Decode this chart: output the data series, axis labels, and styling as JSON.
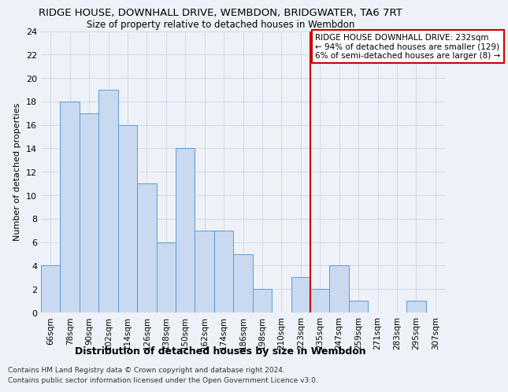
{
  "title": "RIDGE HOUSE, DOWNHALL DRIVE, WEMBDON, BRIDGWATER, TA6 7RT",
  "subtitle": "Size of property relative to detached houses in Wembdon",
  "xlabel_bottom": "Distribution of detached houses by size in Wembdon",
  "ylabel": "Number of detached properties",
  "footer1": "Contains HM Land Registry data © Crown copyright and database right 2024.",
  "footer2": "Contains public sector information licensed under the Open Government Licence v3.0.",
  "categories": [
    "66sqm",
    "78sqm",
    "90sqm",
    "102sqm",
    "114sqm",
    "126sqm",
    "138sqm",
    "150sqm",
    "162sqm",
    "174sqm",
    "186sqm",
    "198sqm",
    "210sqm",
    "223sqm",
    "235sqm",
    "247sqm",
    "259sqm",
    "271sqm",
    "283sqm",
    "295sqm",
    "307sqm"
  ],
  "values": [
    4,
    18,
    17,
    19,
    16,
    11,
    6,
    14,
    7,
    7,
    5,
    2,
    0,
    3,
    2,
    4,
    1,
    0,
    0,
    1,
    0
  ],
  "bar_color": "#c9d9f0",
  "bar_edge_color": "#5b9bd5",
  "grid_color": "#d0d8e8",
  "annotation_text_line1": "RIDGE HOUSE DOWNHALL DRIVE: 232sqm",
  "annotation_text_line2": "← 94% of detached houses are smaller (129)",
  "annotation_text_line3": "6% of semi-detached houses are larger (8) →",
  "annotation_box_color": "#ffffff",
  "annotation_box_edge": "#cc0000",
  "ref_line_color": "#cc0000",
  "ref_line_bin": 14,
  "ylim": [
    0,
    24
  ],
  "yticks": [
    0,
    2,
    4,
    6,
    8,
    10,
    12,
    14,
    16,
    18,
    20,
    22,
    24
  ],
  "background_color": "#eef2f8",
  "title_fontsize": 9.5,
  "subtitle_fontsize": 8.5,
  "ylabel_fontsize": 8,
  "xtick_fontsize": 7.5,
  "ytick_fontsize": 8,
  "xlabel_bottom_fontsize": 9,
  "footer_fontsize": 6.5,
  "annot_fontsize": 7.5
}
